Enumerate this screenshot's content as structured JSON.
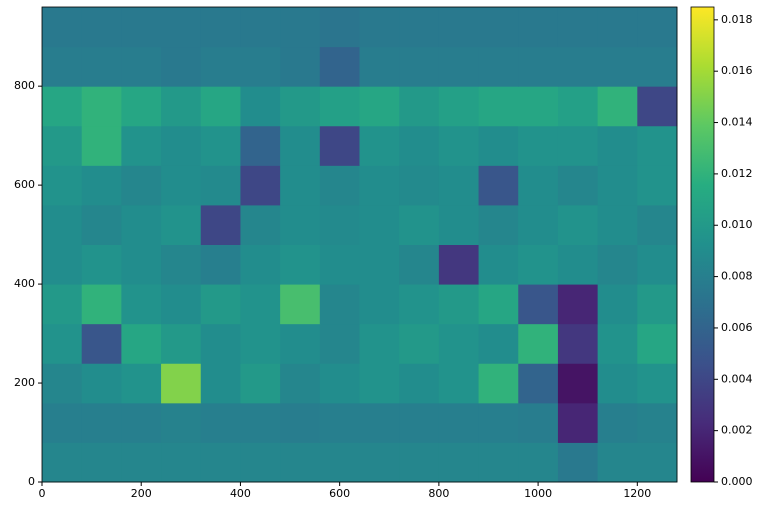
{
  "chart_data": {
    "type": "heatmap",
    "colormap": "viridis",
    "xlim": [
      0,
      1280
    ],
    "xticks": [
      0,
      200,
      400,
      600,
      800,
      1000,
      1200
    ],
    "ylim": [
      0,
      960
    ],
    "yticks": [
      0,
      200,
      400,
      600,
      800
    ],
    "x": [
      0,
      80,
      160,
      240,
      320,
      400,
      480,
      560,
      640,
      720,
      800,
      880,
      960,
      1040,
      1120,
      1200,
      1280
    ],
    "y": [
      0,
      80,
      160,
      240,
      320,
      400,
      480,
      560,
      640,
      720,
      800,
      880,
      960
    ],
    "z": [
      [
        0.0085,
        0.0085,
        0.0085,
        0.0085,
        0.0085,
        0.0085,
        0.0085,
        0.0085,
        0.0085,
        0.0085,
        0.0085,
        0.0085,
        0.0085,
        0.0075,
        0.0085,
        0.0085
      ],
      [
        0.008,
        0.008,
        0.008,
        0.0082,
        0.008,
        0.008,
        0.0078,
        0.008,
        0.008,
        0.008,
        0.008,
        0.008,
        0.0078,
        0.002,
        0.008,
        0.0082
      ],
      [
        0.0085,
        0.009,
        0.0095,
        0.015,
        0.009,
        0.01,
        0.0085,
        0.009,
        0.0095,
        0.009,
        0.0095,
        0.012,
        0.006,
        0.001,
        0.009,
        0.0095
      ],
      [
        0.0095,
        0.005,
        0.011,
        0.01,
        0.009,
        0.0095,
        0.009,
        0.0085,
        0.0095,
        0.01,
        0.0095,
        0.009,
        0.012,
        0.003,
        0.0095,
        0.011
      ],
      [
        0.01,
        0.012,
        0.0095,
        0.009,
        0.01,
        0.0095,
        0.013,
        0.0085,
        0.009,
        0.0095,
        0.01,
        0.011,
        0.005,
        0.002,
        0.009,
        0.01
      ],
      [
        0.009,
        0.0095,
        0.009,
        0.0085,
        0.008,
        0.009,
        0.0095,
        0.009,
        0.009,
        0.0085,
        0.003,
        0.009,
        0.0095,
        0.009,
        0.0085,
        0.009
      ],
      [
        0.009,
        0.0085,
        0.009,
        0.0095,
        0.004,
        0.0085,
        0.009,
        0.0088,
        0.009,
        0.0095,
        0.009,
        0.0085,
        0.009,
        0.0095,
        0.009,
        0.0085
      ],
      [
        0.0095,
        0.009,
        0.0085,
        0.009,
        0.0088,
        0.004,
        0.009,
        0.0085,
        0.009,
        0.0088,
        0.009,
        0.005,
        0.009,
        0.0085,
        0.009,
        0.0095
      ],
      [
        0.01,
        0.012,
        0.0095,
        0.009,
        0.0095,
        0.006,
        0.009,
        0.004,
        0.0095,
        0.009,
        0.0095,
        0.009,
        0.0095,
        0.0095,
        0.009,
        0.0095
      ],
      [
        0.011,
        0.012,
        0.011,
        0.01,
        0.011,
        0.009,
        0.01,
        0.0105,
        0.011,
        0.01,
        0.0105,
        0.011,
        0.011,
        0.0105,
        0.012,
        0.004
      ],
      [
        0.0078,
        0.0078,
        0.0078,
        0.0075,
        0.0078,
        0.0078,
        0.0075,
        0.006,
        0.0078,
        0.0078,
        0.0078,
        0.0078,
        0.0078,
        0.0078,
        0.0078,
        0.0078
      ],
      [
        0.0075,
        0.0075,
        0.0075,
        0.0075,
        0.0075,
        0.0075,
        0.0075,
        0.0072,
        0.0075,
        0.0075,
        0.0075,
        0.0075,
        0.0075,
        0.0075,
        0.0075,
        0.0075
      ]
    ],
    "zlim": [
      0,
      0.0185
    ],
    "zticks": [
      {
        "value": 0,
        "label": "0.000"
      },
      0.002,
      0.004,
      0.006,
      0.008,
      {
        "value": 0.01,
        "label": "0.010"
      },
      0.012,
      0.014,
      0.016,
      0.018
    ]
  }
}
